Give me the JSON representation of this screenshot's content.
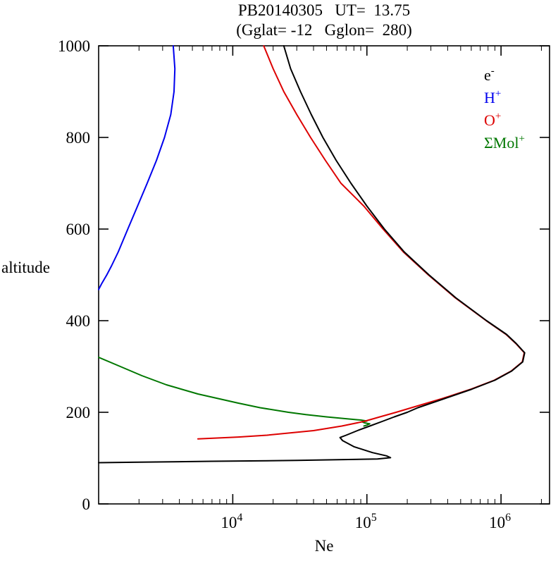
{
  "chart_data": {
    "type": "line",
    "title": "PB20140305   UT=  13.75",
    "subtitle": "(Gglat= -12   Gglon=  280)",
    "xlabel": "Ne",
    "ylabel": "altitude",
    "x_scale": "log",
    "xlim": [
      1000,
      2300000
    ],
    "ylim": [
      0,
      1000
    ],
    "x_major_ticks": [
      10000,
      100000,
      1000000
    ],
    "x_tick_exponents": [
      4,
      5,
      6
    ],
    "y_ticks": [
      0,
      200,
      400,
      600,
      800,
      1000
    ],
    "grid": false,
    "legend_position": "top-right-inside",
    "series": [
      {
        "name": "electron-density",
        "label_base": "e",
        "label_sup": "-",
        "color": "#000000",
        "points": [
          [
            1000,
            24000
          ],
          [
            950,
            27000
          ],
          [
            900,
            32000
          ],
          [
            850,
            38500
          ],
          [
            800,
            47000
          ],
          [
            750,
            59000
          ],
          [
            700,
            76000
          ],
          [
            650,
            100000
          ],
          [
            600,
            135000
          ],
          [
            550,
            190000
          ],
          [
            500,
            290000
          ],
          [
            450,
            460000
          ],
          [
            400,
            780000
          ],
          [
            370,
            1100000
          ],
          [
            350,
            1300000
          ],
          [
            330,
            1500000
          ],
          [
            310,
            1450000
          ],
          [
            290,
            1200000
          ],
          [
            270,
            900000
          ],
          [
            250,
            600000
          ],
          [
            230,
            380000
          ],
          [
            210,
            240000
          ],
          [
            200,
            200000
          ],
          [
            190,
            160000
          ],
          [
            180,
            130000
          ],
          [
            170,
            105000
          ],
          [
            160,
            85000
          ],
          [
            150,
            70000
          ],
          [
            145,
            63000
          ],
          [
            138,
            66000
          ],
          [
            125,
            80000
          ],
          [
            112,
            110000
          ],
          [
            105,
            140000
          ],
          [
            101,
            150000
          ],
          [
            98,
            120000
          ],
          [
            95,
            30000
          ],
          [
            93,
            7000
          ],
          [
            91,
            1800
          ],
          [
            90,
            1000
          ]
        ]
      },
      {
        "name": "h-plus",
        "label_base": "H",
        "label_sup": "+",
        "color": "#0000ee",
        "points": [
          [
            1000,
            3600
          ],
          [
            950,
            3700
          ],
          [
            900,
            3650
          ],
          [
            850,
            3450
          ],
          [
            800,
            3100
          ],
          [
            750,
            2700
          ],
          [
            700,
            2300
          ],
          [
            650,
            1950
          ],
          [
            600,
            1650
          ],
          [
            550,
            1400
          ],
          [
            520,
            1250
          ],
          [
            500,
            1150
          ],
          [
            480,
            1050
          ],
          [
            468,
            1000
          ]
        ]
      },
      {
        "name": "o-plus",
        "label_base": "O",
        "label_sup": "+",
        "color": "#dd0000",
        "points": [
          [
            1000,
            17000
          ],
          [
            950,
            20000
          ],
          [
            900,
            24000
          ],
          [
            850,
            30000
          ],
          [
            800,
            38000
          ],
          [
            750,
            49000
          ],
          [
            700,
            64000
          ],
          [
            650,
            95000
          ],
          [
            600,
            132000
          ],
          [
            550,
            187000
          ],
          [
            500,
            287000
          ],
          [
            450,
            455000
          ],
          [
            400,
            775000
          ],
          [
            370,
            1090000
          ],
          [
            350,
            1290000
          ],
          [
            330,
            1490000
          ],
          [
            310,
            1440000
          ],
          [
            290,
            1190000
          ],
          [
            270,
            890000
          ],
          [
            250,
            590000
          ],
          [
            230,
            365000
          ],
          [
            210,
            215000
          ],
          [
            200,
            165000
          ],
          [
            190,
            125000
          ],
          [
            180,
            95000
          ],
          [
            170,
            65000
          ],
          [
            160,
            40000
          ],
          [
            150,
            18000
          ],
          [
            146,
            11000
          ],
          [
            142,
            5500
          ]
        ]
      },
      {
        "name": "mol-plus",
        "label_base": "ΣMol",
        "label_sup": "+",
        "color": "#007700",
        "points": [
          [
            320,
            1000
          ],
          [
            300,
            1450
          ],
          [
            280,
            2100
          ],
          [
            260,
            3200
          ],
          [
            240,
            5500
          ],
          [
            220,
            11000
          ],
          [
            210,
            16000
          ],
          [
            200,
            26000
          ],
          [
            195,
            35000
          ],
          [
            190,
            50000
          ],
          [
            186,
            70000
          ],
          [
            183,
            90000
          ],
          [
            181,
            100000
          ],
          [
            179,
            92000
          ],
          [
            177,
            96000
          ],
          [
            175,
            105000
          ],
          [
            172,
            100000
          ],
          [
            170,
            95000
          ]
        ]
      }
    ]
  }
}
